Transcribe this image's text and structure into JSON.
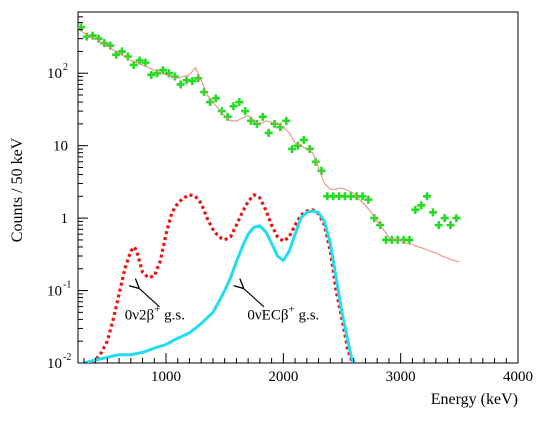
{
  "chart_data": {
    "type": "line",
    "xlabel": "Energy (keV)",
    "ylabel": "Counts / 50 keV",
    "x_scale": "linear",
    "y_scale": "log",
    "xlim": [
      250,
      4000
    ],
    "ylim": [
      0.01,
      700
    ],
    "x_ticks": [
      {
        "value": 1000,
        "label": "1000"
      },
      {
        "value": 2000,
        "label": "2000"
      },
      {
        "value": 3000,
        "label": "3000"
      },
      {
        "value": 4000,
        "label": "4000"
      }
    ],
    "y_ticks": [
      {
        "value": 0.01,
        "base": "10",
        "exp": "-2"
      },
      {
        "value": 0.1,
        "base": "10",
        "exp": "-1"
      },
      {
        "value": 1,
        "base": "1",
        "exp": ""
      },
      {
        "value": 10,
        "base": "10",
        "exp": ""
      },
      {
        "value": 100,
        "base": "10",
        "exp": "2"
      }
    ],
    "grid": false,
    "series": [
      {
        "kind": "markers",
        "color": "#22dd22",
        "x": [
          275,
          325,
          375,
          425,
          475,
          525,
          575,
          625,
          675,
          725,
          775,
          825,
          875,
          925,
          975,
          1025,
          1075,
          1125,
          1175,
          1225,
          1275,
          1325,
          1375,
          1425,
          1475,
          1525,
          1575,
          1625,
          1675,
          1725,
          1775,
          1825,
          1875,
          1925,
          1975,
          2025,
          2075,
          2125,
          2175,
          2225,
          2275,
          2325,
          2375,
          2425,
          2475,
          2525,
          2575,
          2625,
          2675,
          2725,
          2775,
          2825,
          2875,
          2925,
          2975,
          3025,
          3075,
          3125,
          3175,
          3225,
          3275,
          3325,
          3375,
          3425,
          3475
        ],
        "y": [
          430,
          320,
          330,
          300,
          260,
          240,
          180,
          200,
          170,
          130,
          150,
          140,
          95,
          100,
          110,
          100,
          90,
          70,
          80,
          78,
          85,
          55,
          40,
          45,
          30,
          25,
          35,
          40,
          30,
          22,
          20,
          25,
          15,
          20,
          18,
          22,
          9,
          10,
          12,
          9,
          6,
          4.5,
          2,
          2,
          2,
          2,
          2,
          2,
          2,
          1.8,
          1,
          0.8,
          0.5,
          0.5,
          0.5,
          0.5,
          0.5,
          1.3,
          1.5,
          2,
          1.2,
          0.8,
          1,
          0.8,
          1
        ]
      },
      {
        "kind": "line",
        "color": "#e88878",
        "x": [
          250,
          300,
          350,
          400,
          450,
          500,
          550,
          600,
          650,
          700,
          750,
          800,
          850,
          900,
          950,
          1000,
          1050,
          1100,
          1150,
          1200,
          1250,
          1300,
          1350,
          1400,
          1450,
          1500,
          1550,
          1600,
          1650,
          1700,
          1750,
          1800,
          1850,
          1900,
          1950,
          2000,
          2050,
          2100,
          2150,
          2200,
          2250,
          2300,
          2350,
          2400,
          2450,
          2500,
          2550,
          2600,
          2650,
          2700,
          2750,
          2800,
          2850,
          2900,
          2950,
          3000,
          3050,
          3100,
          3150,
          3200,
          3250,
          3300,
          3350,
          3400,
          3450,
          3500
        ],
        "y": [
          420,
          360,
          320,
          300,
          270,
          240,
          210,
          190,
          170,
          150,
          140,
          130,
          120,
          110,
          100,
          95,
          90,
          85,
          90,
          95,
          120,
          80,
          50,
          40,
          32,
          26,
          22,
          22,
          24,
          26,
          22,
          20,
          22,
          21,
          20,
          18,
          15,
          11,
          10,
          9,
          8,
          5,
          3,
          2.5,
          2.5,
          2.6,
          2.4,
          2.2,
          1.8,
          1.5,
          1.2,
          0.9,
          0.7,
          0.55,
          0.5,
          0.5,
          0.45,
          0.43,
          0.4,
          0.38,
          0.35,
          0.33,
          0.3,
          0.28,
          0.26,
          0.25
        ]
      },
      {
        "kind": "line",
        "dash": true,
        "color": "#ee1111",
        "x": [
          370,
          400,
          450,
          500,
          550,
          600,
          650,
          700,
          730,
          750,
          800,
          850,
          900,
          950,
          1000,
          1050,
          1100,
          1150,
          1200,
          1250,
          1300,
          1350,
          1400,
          1450,
          1500,
          1550,
          1600,
          1650,
          1700,
          1750,
          1800,
          1850,
          1900,
          1950,
          2000,
          2050,
          2100,
          2150,
          2200,
          2250,
          2300,
          2350,
          2400,
          2450,
          2500,
          2550,
          2580,
          2600
        ],
        "y": [
          0.01,
          0.011,
          0.014,
          0.02,
          0.04,
          0.09,
          0.2,
          0.35,
          0.4,
          0.35,
          0.18,
          0.15,
          0.16,
          0.25,
          0.6,
          1.2,
          1.6,
          1.9,
          2.1,
          2.0,
          1.6,
          1.0,
          0.7,
          0.55,
          0.5,
          0.55,
          0.8,
          1.2,
          1.7,
          2.1,
          1.9,
          1.3,
          0.8,
          0.55,
          0.48,
          0.55,
          0.8,
          1.1,
          1.25,
          1.3,
          1.15,
          0.8,
          0.35,
          0.1,
          0.04,
          0.015,
          0.011,
          0.01
        ]
      },
      {
        "kind": "line",
        "color": "#22ddee",
        "x": [
          300,
          400,
          500,
          600,
          700,
          800,
          900,
          1000,
          1100,
          1200,
          1300,
          1400,
          1450,
          1500,
          1550,
          1600,
          1650,
          1700,
          1750,
          1800,
          1850,
          1900,
          1950,
          2000,
          2050,
          2100,
          2150,
          2200,
          2250,
          2300,
          2350,
          2400,
          2450,
          2500,
          2550,
          2580,
          2600
        ],
        "y": [
          0.01,
          0.011,
          0.012,
          0.013,
          0.013,
          0.014,
          0.016,
          0.018,
          0.022,
          0.026,
          0.035,
          0.05,
          0.07,
          0.1,
          0.15,
          0.25,
          0.4,
          0.6,
          0.75,
          0.78,
          0.65,
          0.45,
          0.3,
          0.26,
          0.35,
          0.6,
          1.0,
          1.2,
          1.25,
          1.2,
          0.9,
          0.45,
          0.15,
          0.05,
          0.02,
          0.012,
          0.01
        ]
      }
    ],
    "annotations": [
      {
        "text": "0ν2β",
        "sup": "+",
        "suffix": " g.s.",
        "x": 740,
        "y": 0.12,
        "tx": 905,
        "ty": 0.04
      },
      {
        "text": "0νECβ",
        "sup": "+",
        "suffix": " g.s.",
        "x": 1630,
        "y": 0.12,
        "tx": 2000,
        "ty": 0.04
      }
    ]
  }
}
